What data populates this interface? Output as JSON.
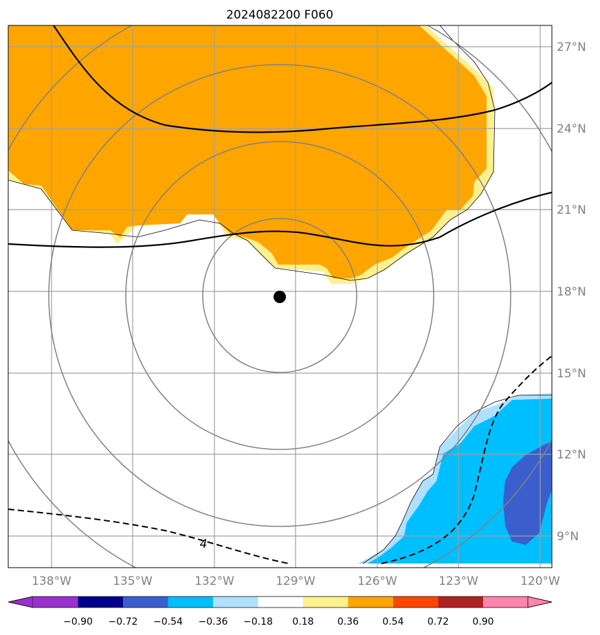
{
  "title": "2024082200 F060",
  "map": {
    "lon_labels": [
      "138°W",
      "135°W",
      "132°W",
      "129°W",
      "126°W",
      "123°W",
      "120°W"
    ],
    "lat_labels": [
      "27°N",
      "24°N",
      "21°N",
      "18°N",
      "15°N",
      "12°N",
      "9°N"
    ],
    "lon_range": [
      -139.6,
      -119.7
    ],
    "lat_range": [
      7.8,
      27.8
    ],
    "grid": true,
    "center_marker": {
      "lon": -129.75,
      "lat": 17.8
    },
    "range_rings_count": 4,
    "contour_label": "4",
    "colors": {
      "orange": "#ffa500",
      "light_yellow": "#fff08f",
      "cyan": "#00bfff",
      "light_blue": "#b0e0ff",
      "royal_blue": "#3a5fcd",
      "grid": "#a0a0a0",
      "ring": "#808080"
    }
  },
  "colorbar": {
    "tick_labels": [
      "−0.90",
      "−0.72",
      "−0.54",
      "−0.36",
      "−0.18",
      "0.18",
      "0.36",
      "0.54",
      "0.72",
      "0.90"
    ],
    "colors": [
      "#9932cc",
      "#00008b",
      "#3a5fcd",
      "#00bfff",
      "#b0e0ff",
      "#ffffff",
      "#fff08f",
      "#ffa500",
      "#ff4500",
      "#b22222",
      "#ff85ad"
    ]
  }
}
